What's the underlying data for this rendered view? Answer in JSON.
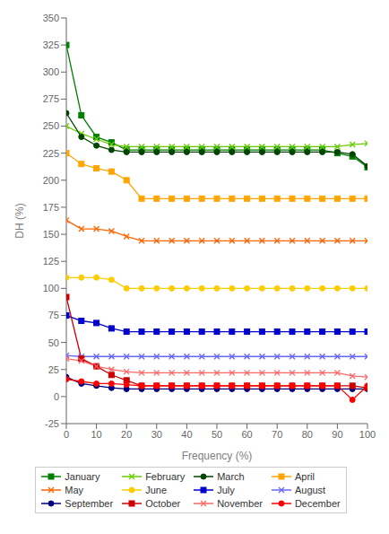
{
  "chart_data": {
    "type": "line",
    "x": [
      0,
      5,
      10,
      15,
      20,
      25,
      30,
      35,
      40,
      45,
      50,
      55,
      60,
      65,
      70,
      75,
      80,
      85,
      90,
      95,
      100
    ],
    "series": [
      {
        "name": "January",
        "color": "#008000",
        "marker": "square",
        "values": [
          325,
          260,
          240,
          235,
          228,
          228,
          228,
          228,
          228,
          228,
          228,
          228,
          228,
          228,
          228,
          228,
          228,
          228,
          225,
          222,
          212
        ]
      },
      {
        "name": "February",
        "color": "#66cc00",
        "marker": "x",
        "values": [
          250,
          243,
          238,
          233,
          231,
          231,
          231,
          231,
          231,
          231,
          231,
          231,
          231,
          231,
          231,
          231,
          231,
          231,
          231,
          233,
          234
        ]
      },
      {
        "name": "March",
        "color": "#004400",
        "marker": "circle",
        "values": [
          262,
          240,
          232,
          228,
          226,
          226,
          226,
          226,
          226,
          226,
          226,
          226,
          226,
          226,
          226,
          226,
          226,
          226,
          226,
          224,
          213
        ]
      },
      {
        "name": "April",
        "color": "#ffa500",
        "marker": "square",
        "values": [
          225,
          215,
          211,
          208,
          200,
          183,
          183,
          183,
          183,
          183,
          183,
          183,
          183,
          183,
          183,
          183,
          183,
          183,
          183,
          183,
          183
        ]
      },
      {
        "name": "May",
        "color": "#ff6600",
        "marker": "x",
        "values": [
          163,
          155,
          155,
          153,
          148,
          144,
          144,
          144,
          144,
          144,
          144,
          144,
          144,
          144,
          144,
          144,
          144,
          144,
          144,
          144,
          144
        ]
      },
      {
        "name": "June",
        "color": "#ffcc00",
        "marker": "circle",
        "values": [
          110,
          110,
          110,
          108,
          100,
          100,
          100,
          100,
          100,
          100,
          100,
          100,
          100,
          100,
          100,
          100,
          100,
          100,
          100,
          100,
          100
        ]
      },
      {
        "name": "July",
        "color": "#0000cc",
        "marker": "square",
        "values": [
          75,
          70,
          68,
          63,
          60,
          60,
          60,
          60,
          60,
          60,
          60,
          60,
          60,
          60,
          60,
          60,
          60,
          60,
          60,
          60,
          60
        ]
      },
      {
        "name": "August",
        "color": "#6666ff",
        "marker": "x",
        "values": [
          38,
          37,
          37,
          37,
          37,
          37,
          37,
          37,
          37,
          37,
          37,
          37,
          37,
          37,
          37,
          37,
          37,
          37,
          37,
          37,
          37
        ]
      },
      {
        "name": "September",
        "color": "#000080",
        "marker": "circle",
        "values": [
          18,
          12,
          10,
          8,
          7,
          7,
          7,
          7,
          7,
          7,
          7,
          7,
          7,
          7,
          7,
          7,
          7,
          7,
          7,
          7,
          7
        ]
      },
      {
        "name": "October",
        "color": "#cc0000",
        "marker": "square",
        "values": [
          92,
          35,
          28,
          20,
          15,
          10,
          10,
          10,
          10,
          10,
          10,
          10,
          10,
          10,
          10,
          10,
          10,
          10,
          10,
          10,
          8
        ]
      },
      {
        "name": "November",
        "color": "#ff6666",
        "marker": "x",
        "values": [
          35,
          33,
          28,
          25,
          23,
          22,
          22,
          22,
          22,
          22,
          22,
          22,
          22,
          22,
          22,
          22,
          22,
          22,
          22,
          19,
          18
        ]
      },
      {
        "name": "December",
        "color": "#ff0000",
        "marker": "circle",
        "values": [
          16,
          14,
          12,
          12,
          11,
          10,
          10,
          10,
          10,
          10,
          10,
          10,
          10,
          10,
          10,
          10,
          10,
          10,
          10,
          -3,
          10
        ]
      }
    ],
    "xlabel": "Frequency (%)",
    "ylabel": "DH (%)",
    "xlim": [
      0,
      100
    ],
    "ylim": [
      -25,
      350
    ],
    "xticks": [
      0,
      10,
      20,
      30,
      40,
      50,
      60,
      70,
      80,
      90,
      100
    ],
    "yticks": [
      -25,
      0,
      25,
      50,
      75,
      100,
      125,
      150,
      175,
      200,
      225,
      250,
      275,
      300,
      325,
      350
    ],
    "grid": false,
    "legend": "bottom"
  }
}
